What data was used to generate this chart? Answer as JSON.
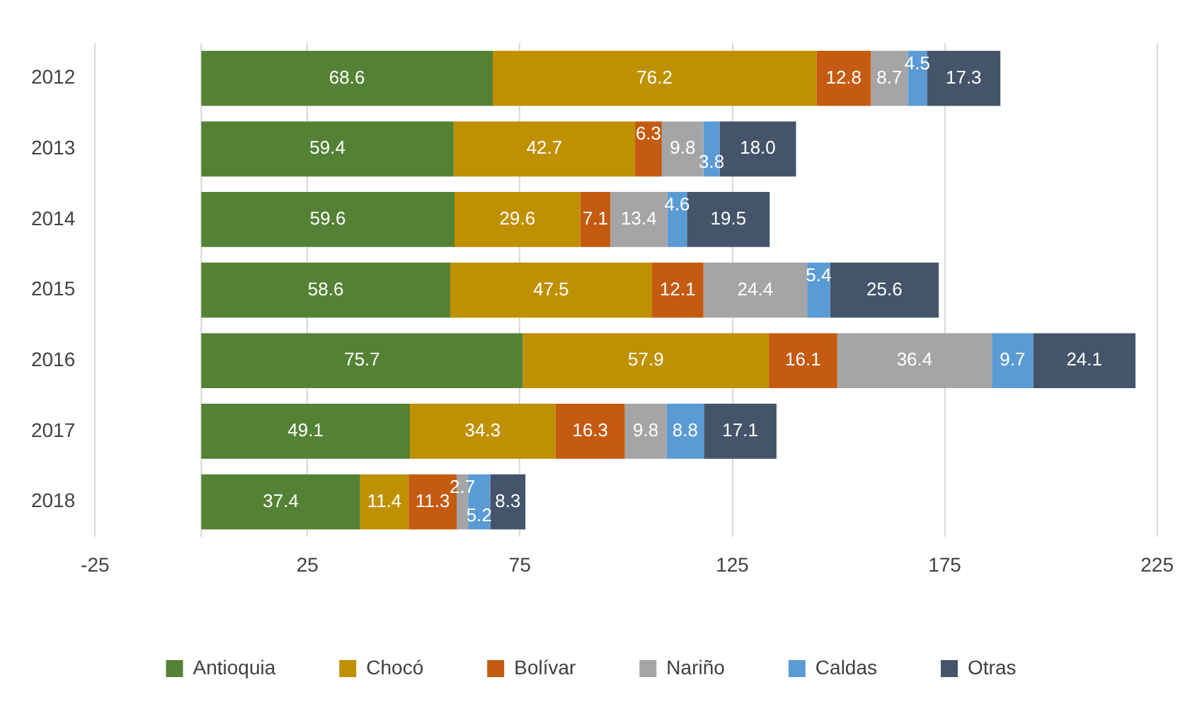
{
  "chart_data": {
    "type": "bar",
    "orientation": "horizontal",
    "stacked": true,
    "categories": [
      "2012",
      "2013",
      "2014",
      "2015",
      "2016",
      "2017",
      "2018"
    ],
    "series": [
      {
        "name": "Antioquia",
        "color": "#548235",
        "values": [
          68.6,
          59.4,
          59.6,
          58.6,
          75.7,
          49.1,
          37.4
        ],
        "value_labels": [
          "68.6",
          "59.4",
          "59.6",
          "58.6",
          "75.7",
          "49.1",
          "37.4"
        ]
      },
      {
        "name": "Chocó",
        "color": "#bf9000",
        "values": [
          76.2,
          42.7,
          29.6,
          47.5,
          57.9,
          34.3,
          11.4
        ],
        "value_labels": [
          "76.2",
          "42.7",
          "29.6",
          "47.5",
          "57.9",
          "34.3",
          "11.4"
        ]
      },
      {
        "name": "Bolívar",
        "color": "#c55a11",
        "values": [
          12.8,
          6.3,
          7.1,
          12.1,
          16.1,
          16.3,
          11.3
        ],
        "value_labels": [
          "12.8",
          "6.3",
          "7.1",
          "12.1",
          "16.1",
          "16.3",
          "11.3"
        ]
      },
      {
        "name": "Nariño",
        "color": "#a5a5a5",
        "values": [
          8.7,
          9.8,
          13.4,
          24.4,
          36.4,
          9.8,
          2.7
        ],
        "value_labels": [
          "8.7",
          "9.8",
          "13.4",
          "24.4",
          "36.4",
          "9.8",
          "2.7"
        ]
      },
      {
        "name": "Caldas",
        "color": "#5b9bd5",
        "values": [
          4.5,
          3.8,
          4.6,
          5.4,
          9.7,
          8.8,
          5.2
        ],
        "value_labels": [
          "4.5",
          "3.8",
          "4.6",
          "5.4",
          "9.7",
          "8.8",
          "5.2"
        ]
      },
      {
        "name": "Otras",
        "color": "#44546a",
        "values": [
          17.3,
          18,
          19.5,
          25.6,
          24.1,
          17.1,
          8.3
        ],
        "value_labels": [
          "17.3",
          "18.0",
          "19.5",
          "25.6",
          "24.1",
          "17.1",
          "8.3"
        ]
      }
    ],
    "xlim": [
      -25,
      225
    ],
    "xticks": [
      -25,
      25,
      75,
      125,
      175,
      225
    ],
    "grid": "x",
    "legend": "bottom"
  }
}
